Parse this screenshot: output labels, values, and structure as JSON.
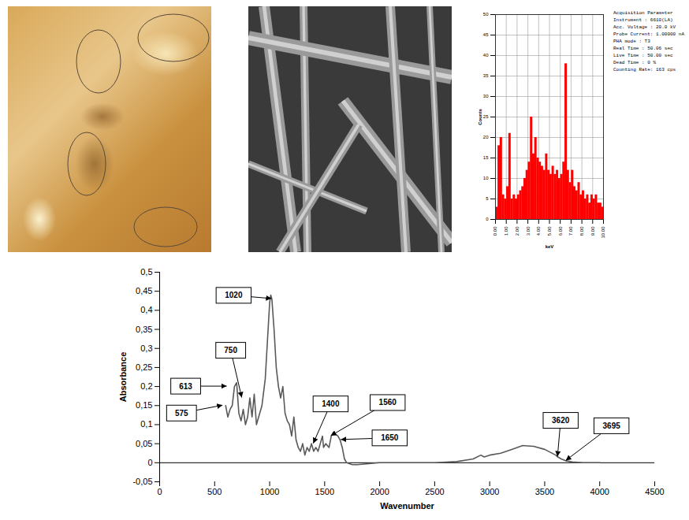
{
  "chart_data": [
    {
      "type": "bar",
      "x_label": "keV",
      "y_label": "Counts",
      "x": [
        0.1,
        0.3,
        0.5,
        0.7,
        0.9,
        1.1,
        1.3,
        1.5,
        1.7,
        1.9,
        2.1,
        2.3,
        2.5,
        2.7,
        2.9,
        3.1,
        3.3,
        3.5,
        3.7,
        3.9,
        4.1,
        4.3,
        4.5,
        4.7,
        4.9,
        5.1,
        5.3,
        5.5,
        5.7,
        5.9,
        6.1,
        6.3,
        6.5,
        6.7,
        6.9,
        7.1,
        7.3,
        7.5,
        7.7,
        7.9,
        8.1,
        8.3,
        8.5,
        8.7,
        8.9,
        9.1,
        9.3,
        9.5,
        9.7,
        9.9
      ],
      "values": [
        3,
        18,
        20,
        6,
        5,
        8,
        21,
        5,
        6,
        5,
        6,
        7,
        8,
        10,
        12,
        14,
        25,
        16,
        20,
        15,
        14,
        13,
        12,
        16,
        12,
        11,
        13,
        11,
        12,
        10,
        11,
        14,
        38,
        12,
        9,
        12,
        8,
        7,
        9,
        6,
        7,
        5,
        6,
        4,
        6,
        5,
        6,
        4,
        4,
        3
      ],
      "color": "#ff0000",
      "xlim": [
        0,
        10
      ],
      "xticks": [
        {
          "value": 0,
          "label": "0.00"
        },
        {
          "value": 1,
          "label": "1.00"
        },
        {
          "value": 2,
          "label": "2.00"
        },
        {
          "value": 3,
          "label": "3.00"
        },
        {
          "value": 4,
          "label": "4.00"
        },
        {
          "value": 5,
          "label": "5.00"
        },
        {
          "value": 6,
          "label": "6.00"
        },
        {
          "value": 7,
          "label": "7.00"
        },
        {
          "value": 8,
          "label": "8.00"
        },
        {
          "value": 9,
          "label": "9.00"
        },
        {
          "value": 10,
          "label": "10.00"
        }
      ],
      "ylim": [
        0,
        50
      ],
      "yticks": [
        0,
        5,
        10,
        15,
        20,
        25,
        30,
        35,
        40,
        45,
        50
      ],
      "grid": true,
      "annotations": [
        "Acquisition Parameter",
        "Instrument : 6610(LA)",
        "Acc. Voltage : 20.0 kV",
        "Probe Current: 1.00000 nA",
        "PHA mode : T3",
        "Real Time : 50.06 sec",
        "Live Time : 50.00 sec",
        "Dead Time : 0 %",
        "Counting Rate: 163 cps"
      ]
    },
    {
      "type": "line",
      "x_label": "Wavenumber",
      "y_label": "Absorbance",
      "x": [
        600,
        620,
        640,
        660,
        680,
        700,
        720,
        740,
        760,
        780,
        800,
        820,
        840,
        860,
        880,
        900,
        930,
        960,
        980,
        1000,
        1010,
        1020,
        1040,
        1060,
        1080,
        1100,
        1120,
        1140,
        1160,
        1180,
        1200,
        1220,
        1240,
        1260,
        1280,
        1300,
        1320,
        1340,
        1360,
        1380,
        1400,
        1420,
        1440,
        1460,
        1480,
        1490,
        1510,
        1540,
        1560,
        1580,
        1600,
        1620,
        1640,
        1660,
        1680,
        1700,
        1750,
        1800,
        2000,
        2200,
        2500,
        2700,
        2850,
        2920,
        2950,
        3000,
        3100,
        3200,
        3300,
        3400,
        3500,
        3600,
        3620,
        3650,
        3695,
        3750,
        3850,
        4000
      ],
      "values": [
        0.15,
        0.12,
        0.14,
        0.15,
        0.2,
        0.21,
        0.13,
        0.11,
        0.14,
        0.1,
        0.12,
        0.17,
        0.12,
        0.18,
        0.1,
        0.12,
        0.15,
        0.22,
        0.32,
        0.42,
        0.44,
        0.43,
        0.35,
        0.25,
        0.2,
        0.17,
        0.2,
        0.13,
        0.11,
        0.1,
        0.07,
        0.12,
        0.06,
        0.04,
        0.03,
        0.05,
        0.02,
        0.04,
        0.03,
        0.05,
        0.03,
        0.04,
        0.03,
        0.05,
        0.07,
        0.04,
        0.05,
        0.04,
        0.07,
        0.08,
        0.075,
        0.07,
        0.06,
        0.04,
        0.01,
        0.0,
        -0.005,
        -0.005,
        0.0,
        0.0,
        0.0,
        0.003,
        0.01,
        0.02,
        0.015,
        0.02,
        0.025,
        0.035,
        0.045,
        0.043,
        0.035,
        0.02,
        0.015,
        0.01,
        0.005,
        0.002,
        0.0,
        0.0
      ],
      "color": "#595959",
      "xlim": [
        0,
        4500
      ],
      "xticks": [
        0,
        500,
        1000,
        1500,
        2000,
        2500,
        3000,
        3500,
        4000,
        4500
      ],
      "ylim": [
        -0.05,
        0.5
      ],
      "yticks": [
        {
          "value": -0.05,
          "label": "-0,05"
        },
        0,
        {
          "value": 0.05,
          "label": "0,05"
        },
        {
          "value": 0.1,
          "label": "0,1"
        },
        {
          "value": 0.15,
          "label": "0,15"
        },
        {
          "value": 0.2,
          "label": "0,2"
        },
        {
          "value": 0.25,
          "label": "0,25"
        },
        {
          "value": 0.3,
          "label": "0,3"
        },
        {
          "value": 0.35,
          "label": "0,35"
        },
        {
          "value": 0.4,
          "label": "0,4"
        },
        {
          "value": 0.45,
          "label": "0,45"
        },
        {
          "value": 0.5,
          "label": "0,5"
        }
      ],
      "grid": false,
      "annotations": [
        {
          "label": "1020",
          "x": 1020,
          "y": 0.43
        },
        {
          "label": "750",
          "x": 750,
          "y": 0.17
        },
        {
          "label": "613",
          "x": 613,
          "y": 0.2
        },
        {
          "label": "575",
          "x": 575,
          "y": 0.15
        },
        {
          "label": "1400",
          "x": 1400,
          "y": 0.05
        },
        {
          "label": "1560",
          "x": 1560,
          "y": 0.07
        },
        {
          "label": "1650",
          "x": 1650,
          "y": 0.06
        },
        {
          "label": "3620",
          "x": 3620,
          "y": 0.015
        },
        {
          "label": "3695",
          "x": 3695,
          "y": 0.005
        }
      ]
    }
  ]
}
